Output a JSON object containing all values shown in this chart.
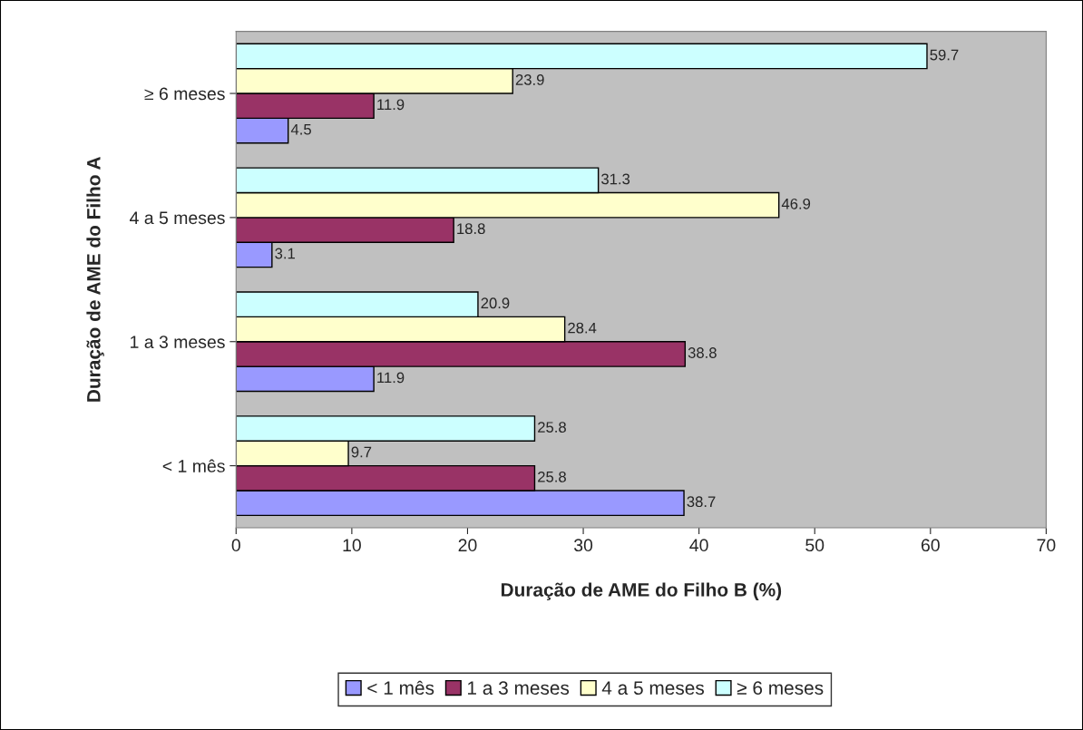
{
  "chart_data": {
    "type": "bar",
    "orientation": "horizontal",
    "xlabel": "Duração de AME do Filho B (%)",
    "ylabel": "Duração de AME do Filho A",
    "categories": [
      "≥ 6 meses",
      "4 a 5 meses",
      "1 a 3 meses",
      "< 1 mês"
    ],
    "series": [
      {
        "name": "< 1 mês",
        "color": "#9999ff",
        "values": [
          4.5,
          3.1,
          11.9,
          38.7
        ]
      },
      {
        "name": "1 a 3 meses",
        "color": "#993366",
        "values": [
          11.9,
          18.8,
          38.8,
          25.8
        ]
      },
      {
        "name": "4 a 5 meses",
        "color": "#ffffcc",
        "values": [
          23.9,
          46.9,
          28.4,
          9.7
        ]
      },
      {
        "name": "≥ 6 meses",
        "color": "#ccffff",
        "values": [
          59.7,
          31.3,
          20.9,
          25.8
        ]
      }
    ],
    "xlim": [
      0,
      70
    ],
    "xticks": [
      0,
      10,
      20,
      30,
      40,
      50,
      60,
      70
    ],
    "data_labels": true,
    "grid": false,
    "legend": "bottom"
  }
}
